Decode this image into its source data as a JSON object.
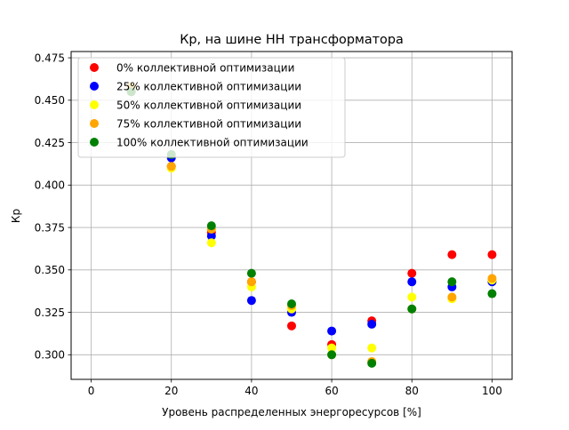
{
  "chart_data": {
    "type": "scatter",
    "title": "Кр, на шине НН трансформатора",
    "xlabel": "Уровень распределенных энергоресурсов [%]",
    "ylabel": "Кр",
    "xlim": [
      -5,
      105
    ],
    "ylim": [
      0.2855,
      0.4787
    ],
    "xticks": [
      0,
      20,
      40,
      60,
      80,
      100
    ],
    "yticks": [
      0.3,
      0.325,
      0.35,
      0.375,
      0.4,
      0.425,
      0.45,
      0.475
    ],
    "ytick_labels": [
      "0.300",
      "0.325",
      "0.350",
      "0.375",
      "0.400",
      "0.425",
      "0.450",
      "0.475"
    ],
    "grid": true,
    "legend_position": "top-left",
    "series": [
      {
        "name": "0% коллективной оптимизации",
        "color": "#ff0000",
        "x": [
          10,
          20,
          30,
          40,
          50,
          60,
          70,
          80,
          90,
          100
        ],
        "y": [
          0.455,
          0.411,
          0.372,
          0.343,
          0.317,
          0.306,
          0.32,
          0.348,
          0.359,
          0.359
        ]
      },
      {
        "name": "25% коллективной оптимизации",
        "color": "#0000ff",
        "x": [
          10,
          20,
          30,
          40,
          50,
          60,
          70,
          80,
          90,
          100
        ],
        "y": [
          0.456,
          0.416,
          0.37,
          0.332,
          0.325,
          0.314,
          0.318,
          0.343,
          0.34,
          0.343
        ]
      },
      {
        "name": "50% коллективной оптимизации",
        "color": "#ffff00",
        "x": [
          10,
          20,
          30,
          40,
          50,
          60,
          70,
          80,
          90,
          100
        ],
        "y": [
          0.456,
          0.41,
          0.366,
          0.34,
          0.327,
          0.304,
          0.304,
          0.334,
          0.333,
          0.344
        ]
      },
      {
        "name": "75% коллективной оптимизации",
        "color": "#ffa500",
        "x": [
          10,
          20,
          30,
          40,
          50,
          60,
          70,
          80,
          90,
          100
        ],
        "y": [
          0.458,
          0.411,
          0.374,
          0.343,
          0.329,
          0.3,
          0.296,
          0.327,
          0.334,
          0.345
        ]
      },
      {
        "name": "100% коллективной оптимизации",
        "color": "#008000",
        "x": [
          10,
          20,
          30,
          40,
          50,
          60,
          70,
          80,
          90,
          100
        ],
        "y": [
          0.455,
          0.418,
          0.376,
          0.348,
          0.33,
          0.3,
          0.295,
          0.327,
          0.343,
          0.336
        ]
      }
    ]
  }
}
